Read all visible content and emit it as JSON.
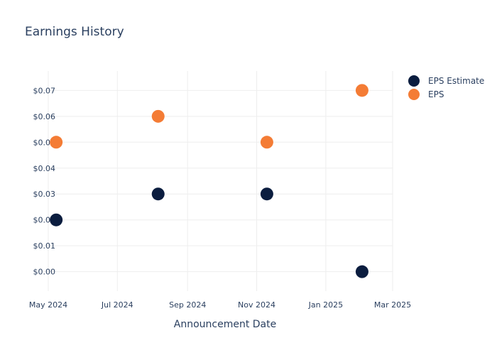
{
  "chart_data": {
    "type": "scatter",
    "title": "Earnings History",
    "xlabel": "Announcement Date",
    "ylabel": "",
    "x_ticks": [
      {
        "date": "2024-05-01",
        "label": "May 2024"
      },
      {
        "date": "2024-07-01",
        "label": "Jul 2024"
      },
      {
        "date": "2024-09-01",
        "label": "Sep 2024"
      },
      {
        "date": "2024-11-01",
        "label": "Nov 2024"
      },
      {
        "date": "2025-01-01",
        "label": "Jan 2025"
      },
      {
        "date": "2025-03-01",
        "label": "Mar 2025"
      }
    ],
    "y_ticks": [
      {
        "value": 0.0,
        "label": "$0.00"
      },
      {
        "value": 0.01,
        "label": "$0.01"
      },
      {
        "value": 0.02,
        "label": "$0.02"
      },
      {
        "value": 0.03,
        "label": "$0.03"
      },
      {
        "value": 0.04,
        "label": "$0.04"
      },
      {
        "value": 0.05,
        "label": "$0.05"
      },
      {
        "value": 0.06,
        "label": "$0.06"
      },
      {
        "value": 0.07,
        "label": "$0.07"
      }
    ],
    "xlim": [
      "2024-04-26",
      "2025-03-01"
    ],
    "ylim": [
      -0.0075,
      0.0775
    ],
    "grid": true,
    "legend_position": "top-right",
    "series": [
      {
        "name": "EPS Estimate",
        "color": "#0b1d3f",
        "points": [
          {
            "x": "2024-05-08",
            "y": 0.02
          },
          {
            "x": "2024-08-06",
            "y": 0.03
          },
          {
            "x": "2024-11-10",
            "y": 0.03
          },
          {
            "x": "2025-02-02",
            "y": 0.0
          }
        ]
      },
      {
        "name": "EPS",
        "color": "#f47c35",
        "points": [
          {
            "x": "2024-05-08",
            "y": 0.05
          },
          {
            "x": "2024-08-06",
            "y": 0.06
          },
          {
            "x": "2024-11-10",
            "y": 0.05
          },
          {
            "x": "2025-02-02",
            "y": 0.07
          }
        ]
      }
    ]
  }
}
